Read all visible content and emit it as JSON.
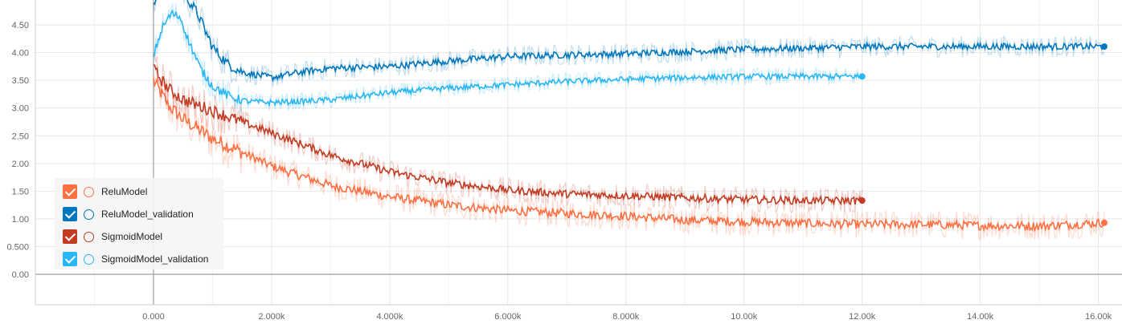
{
  "chart_data": {
    "type": "line",
    "x_ticks": [
      "0.000",
      "2.000k",
      "4.000k",
      "6.000k",
      "8.000k",
      "10.00k",
      "12.00k",
      "14.00k",
      "16.00k"
    ],
    "y_ticks": [
      "0.00",
      "0.500",
      "1.00",
      "1.50",
      "2.00",
      "2.50",
      "3.00",
      "3.50",
      "4.00",
      "4.50"
    ],
    "xlim": [
      -2000,
      16400
    ],
    "ylim": [
      -0.55,
      4.95
    ],
    "grid": true,
    "legend_position": "bottom-left",
    "series": [
      {
        "name": "ReluModel",
        "color": "#ff7043",
        "x": [
          0,
          250,
          500,
          1000,
          1500,
          2000,
          3000,
          4000,
          5000,
          6000,
          7000,
          8000,
          9000,
          10000,
          11000,
          12000,
          13000,
          14000,
          15000,
          16100
        ],
        "y": [
          3.5,
          3.05,
          2.8,
          2.45,
          2.2,
          1.95,
          1.6,
          1.4,
          1.25,
          1.15,
          1.1,
          1.05,
          0.98,
          0.95,
          0.92,
          0.9,
          0.9,
          0.88,
          0.87,
          0.93
        ]
      },
      {
        "name": "ReluModel_validation",
        "color": "#0277bd",
        "x": [
          0,
          250,
          500,
          750,
          1000,
          1250,
          1500,
          2000,
          2500,
          3000,
          4000,
          5000,
          6000,
          7000,
          8000,
          9000,
          10000,
          11000,
          12000,
          13000,
          14000,
          15000,
          16100
        ],
        "y": [
          4.9,
          5.3,
          5.1,
          4.7,
          4.1,
          3.8,
          3.65,
          3.55,
          3.65,
          3.72,
          3.75,
          3.85,
          3.93,
          3.96,
          3.98,
          4.02,
          4.06,
          4.08,
          4.11,
          4.11,
          4.11,
          4.11,
          4.11
        ]
      },
      {
        "name": "SigmoidModel",
        "color": "#c23b22",
        "x": [
          0,
          250,
          500,
          1000,
          1500,
          2000,
          3000,
          4000,
          5000,
          6000,
          7000,
          8000,
          9000,
          10000,
          11000,
          12000
        ],
        "y": [
          3.7,
          3.35,
          3.15,
          2.95,
          2.75,
          2.55,
          2.15,
          1.85,
          1.65,
          1.52,
          1.45,
          1.42,
          1.38,
          1.35,
          1.33,
          1.33
        ]
      },
      {
        "name": "SigmoidModel_validation",
        "color": "#29b6f6",
        "x": [
          0,
          150,
          300,
          450,
          600,
          800,
          1000,
          1300,
          1600,
          2000,
          2500,
          3000,
          4000,
          5000,
          6000,
          7000,
          8000,
          9000,
          10000,
          11000,
          12000
        ],
        "y": [
          3.95,
          4.45,
          4.7,
          4.65,
          4.2,
          3.7,
          3.4,
          3.2,
          3.12,
          3.1,
          3.12,
          3.15,
          3.28,
          3.36,
          3.42,
          3.48,
          3.52,
          3.55,
          3.57,
          3.57,
          3.57
        ]
      }
    ]
  }
}
